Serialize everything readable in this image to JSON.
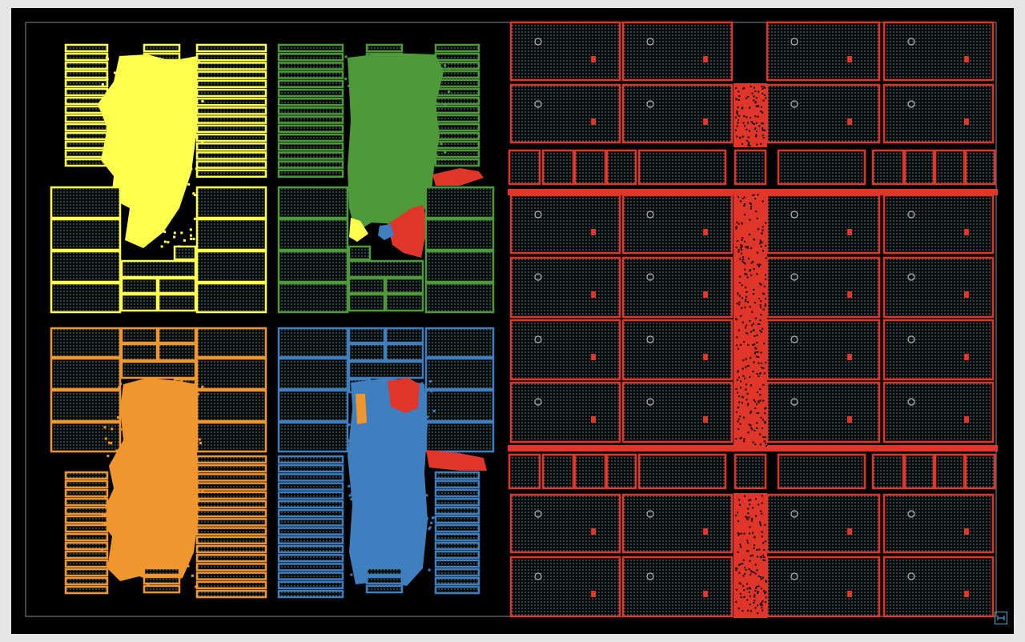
{
  "canvas": {
    "background": "#000000",
    "frame_color": "#8a8a8a",
    "page_background": "#e6e6e6"
  },
  "clusters": [
    {
      "id": "cluster-top-left",
      "color": "#ffff4d"
    },
    {
      "id": "cluster-top-center",
      "color": "#4e9a3a"
    },
    {
      "id": "cluster-bottom-left",
      "color": "#f0962e"
    },
    {
      "id": "cluster-bottom-center",
      "color": "#3f7fbf"
    },
    {
      "id": "cluster-right",
      "color": "#e0362a"
    }
  ],
  "cell_texture_color": "#3c4648",
  "marker_colors": {
    "pin_dots": "#b8b8b8",
    "macro_glyph": "#e0362a"
  },
  "fit_button": {
    "icon": "fit-view-icon",
    "color": "#3aa6c8"
  }
}
